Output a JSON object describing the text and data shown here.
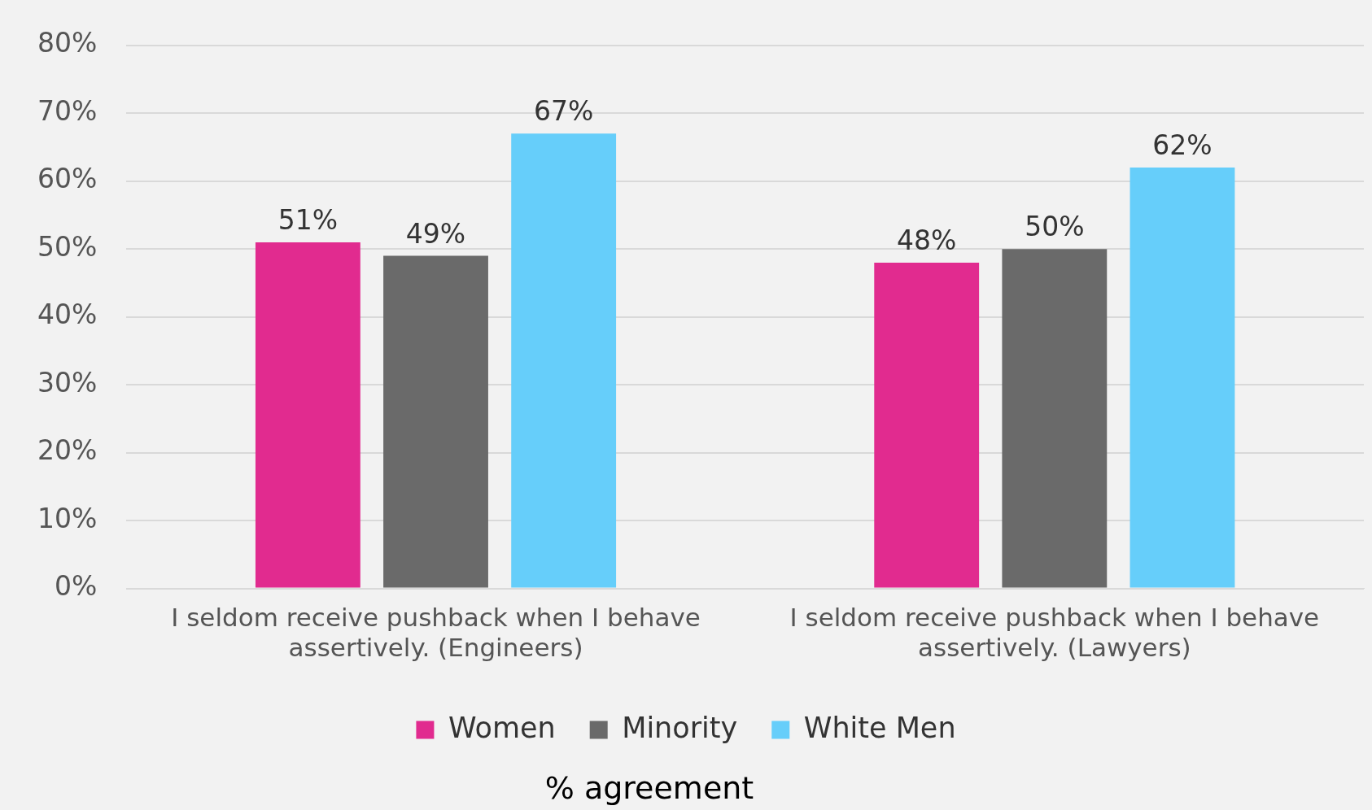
{
  "chart_data": {
    "type": "bar",
    "xlabel": "% agreement",
    "categories": [
      "I seldom receive pushback when I behave assertively. (Engineers)",
      "I seldom receive pushback when I behave assertively. (Lawyers)"
    ],
    "series": [
      {
        "name": "Women",
        "color": "#e12b8f",
        "values": [
          51,
          48
        ],
        "value_labels": [
          "51%",
          "48%"
        ]
      },
      {
        "name": "Minority",
        "color": "#6a6a6a",
        "values": [
          49,
          50
        ],
        "value_labels": [
          "49%",
          "50%"
        ]
      },
      {
        "name": "White Men",
        "color": "#66cefa",
        "values": [
          67,
          62
        ],
        "value_labels": [
          "67%",
          "62%"
        ]
      }
    ],
    "ylim": [
      0,
      80
    ],
    "yticks": [
      {
        "value": 0,
        "label": "0%"
      },
      {
        "value": 10,
        "label": "10%"
      },
      {
        "value": 20,
        "label": "20%"
      },
      {
        "value": 30,
        "label": "30%"
      },
      {
        "value": 40,
        "label": "40%"
      },
      {
        "value": 50,
        "label": "50%"
      },
      {
        "value": 60,
        "label": "60%"
      },
      {
        "value": 70,
        "label": "70%"
      },
      {
        "value": 80,
        "label": "80%"
      }
    ],
    "grid": "y",
    "legend": "bottom"
  }
}
